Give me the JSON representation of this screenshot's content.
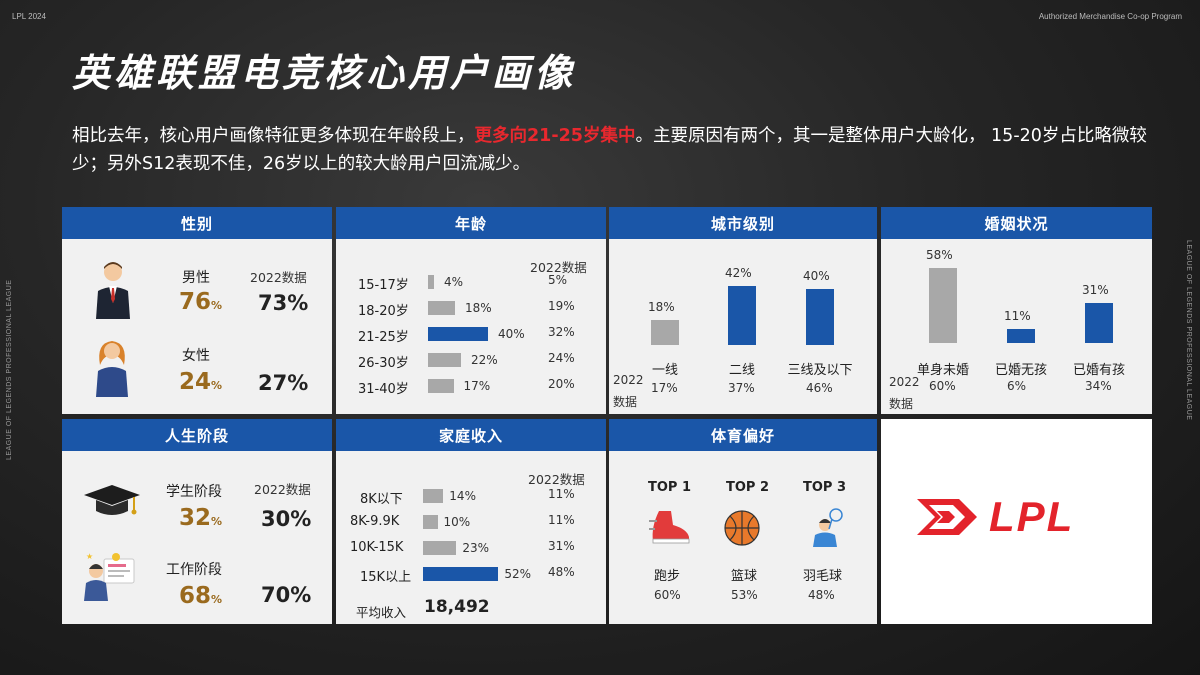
{
  "header": {
    "corner_left": "LPL 2024",
    "corner_right": "Authorized Merchandise Co-op Program",
    "side_text": "LEAGUE OF LEGENDS PROFESSIONAL LEAGUE"
  },
  "title": "英雄联盟电竞核心用户画像",
  "intro": {
    "part1": "相比去年，核心用户画像特征更多体现在年龄段上，",
    "highlight": "更多向21-25岁集中",
    "part2": "。主要原因有两个，其一是整体用户大龄化， 15-20岁占比略微较少；另外S12表现不佳，26岁以上的较大龄用户回流减少。"
  },
  "colors": {
    "blue": "#1a56a8",
    "gold": "#9a6a1e",
    "highlight": "#e8282e",
    "bar_gray": "#a8a8a8"
  },
  "gender": {
    "title": "性别",
    "ref_label": "2022数据",
    "items": [
      {
        "label": "男性",
        "value": "76",
        "unit": "%",
        "ref": "73%",
        "icon": "businessman-icon"
      },
      {
        "label": "女性",
        "value": "24",
        "unit": "%",
        "ref": "27%",
        "icon": "woman-icon"
      }
    ]
  },
  "age": {
    "title": "年龄",
    "ref_label": "2022数据",
    "rows": [
      {
        "label": "15-17岁",
        "value": 4,
        "text": "4%",
        "ref": "5%",
        "highlight": false
      },
      {
        "label": "18-20岁",
        "value": 18,
        "text": "18%",
        "ref": "19%",
        "highlight": false
      },
      {
        "label": "21-25岁",
        "value": 40,
        "text": "40%",
        "ref": "32%",
        "highlight": true
      },
      {
        "label": "26-30岁",
        "value": 22,
        "text": "22%",
        "ref": "24%",
        "highlight": false
      },
      {
        "label": "31-40岁",
        "value": 17,
        "text": "17%",
        "ref": "20%",
        "highlight": false
      }
    ]
  },
  "city": {
    "title": "城市级别",
    "ref_label_1": "2022",
    "ref_label_2": "数据",
    "cols": [
      {
        "label": "一线",
        "value": 18,
        "text": "18%",
        "ref": "17%",
        "highlight": false
      },
      {
        "label": "二线",
        "value": 42,
        "text": "42%",
        "ref": "37%",
        "highlight": true
      },
      {
        "label": "三线及以下",
        "value": 40,
        "text": "40%",
        "ref": "46%",
        "highlight": true
      }
    ]
  },
  "marriage": {
    "title": "婚姻状况",
    "ref_label_1": "2022",
    "ref_label_2": "数据",
    "cols": [
      {
        "label": "单身未婚",
        "value": 58,
        "text": "58%",
        "ref": "60%",
        "highlight": false
      },
      {
        "label": "已婚无孩",
        "value": 11,
        "text": "11%",
        "ref": "6%",
        "highlight": true
      },
      {
        "label": "已婚有孩",
        "value": 31,
        "text": "31%",
        "ref": "34%",
        "highlight": true
      }
    ]
  },
  "life": {
    "title": "人生阶段",
    "ref_label": "2022数据",
    "items": [
      {
        "label": "学生阶段",
        "value": "32",
        "unit": "%",
        "ref": "30%",
        "icon": "graduation-cap-icon"
      },
      {
        "label": "工作阶段",
        "value": "68",
        "unit": "%",
        "ref": "70%",
        "icon": "office-worker-icon"
      }
    ]
  },
  "income": {
    "title": "家庭收入",
    "ref_label": "2022数据",
    "rows": [
      {
        "label": "8K以下",
        "value": 14,
        "text": "14%",
        "ref": "11%",
        "highlight": false
      },
      {
        "label": "8K-9.9K",
        "value": 10,
        "text": "10%",
        "ref": "11%",
        "highlight": false
      },
      {
        "label": "10K-15K",
        "value": 23,
        "text": "23%",
        "ref": "31%",
        "highlight": false
      },
      {
        "label": "15K以上",
        "value": 52,
        "text": "52%",
        "ref": "48%",
        "highlight": true
      }
    ],
    "avg_label": "平均收入",
    "avg_value": "18,492"
  },
  "sports": {
    "title": "体育偏好",
    "items": [
      {
        "rank": "TOP 1",
        "label": "跑步",
        "value": "60%",
        "icon": "running-shoe-icon"
      },
      {
        "rank": "TOP 2",
        "label": "篮球",
        "value": "53%",
        "icon": "basketball-icon"
      },
      {
        "rank": "TOP 3",
        "label": "羽毛球",
        "value": "48%",
        "icon": "badminton-icon"
      }
    ]
  },
  "logo": {
    "text": "LPL"
  }
}
